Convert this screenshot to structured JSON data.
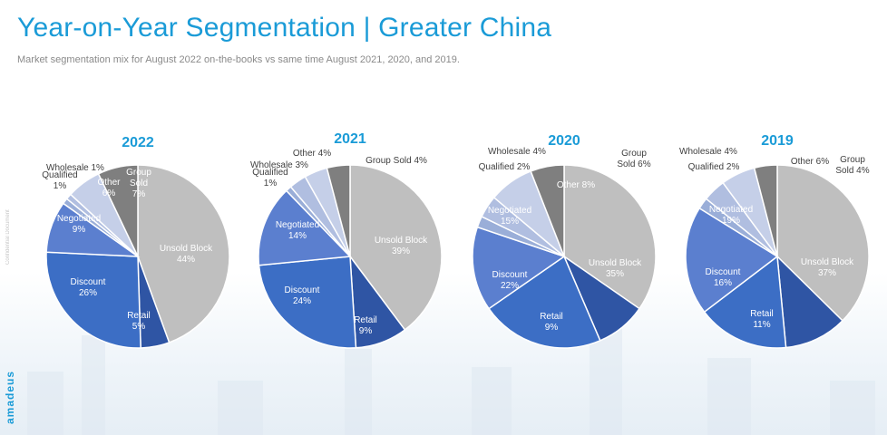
{
  "header": {
    "title": "Year-on-Year Segmentation | Greater China",
    "subtitle": "Market segmentation mix for August 2022 on-the-books vs same time August 2021, 2020, and 2019."
  },
  "side": {
    "confidential": "Confidential Document",
    "logo": "amadeus"
  },
  "colors": {
    "title": "#1a9bd7",
    "year_label": "#1a9bd7",
    "unsold_block": "#bfbfbf",
    "group_sold": "#7f7f7f",
    "other": "#c5cfe8",
    "wholesale": "#b0bee0",
    "qualified": "#9aaed8",
    "negotiated": "#5b7fcf",
    "discount": "#3c6ec5",
    "retail": "#2f55a4"
  },
  "chart_data": [
    {
      "type": "pie",
      "title": "2022",
      "slices": [
        {
          "key": "unsold_block",
          "label": "Unsold Block",
          "value": 44,
          "text": "44%"
        },
        {
          "key": "retail",
          "label": "Retail",
          "value": 5,
          "text": "5%"
        },
        {
          "key": "discount",
          "label": "Discount",
          "value": 26,
          "text": "26%"
        },
        {
          "key": "negotiated",
          "label": "Negotiated",
          "value": 9,
          "text": "9%"
        },
        {
          "key": "qualified",
          "label": "Qualified",
          "value": 1,
          "text": "1%"
        },
        {
          "key": "wholesale",
          "label": "Wholesale",
          "value": 1,
          "text": "1%"
        },
        {
          "key": "other",
          "label": "Other",
          "value": 6,
          "text": "6%"
        },
        {
          "key": "group_sold",
          "label": "Group Sold",
          "value": 7,
          "text": "7%"
        }
      ]
    },
    {
      "type": "pie",
      "title": "2021",
      "slices": [
        {
          "key": "unsold_block",
          "label": "Unsold Block",
          "value": 39,
          "text": "39%"
        },
        {
          "key": "retail",
          "label": "Retail",
          "value": 9,
          "text": "9%"
        },
        {
          "key": "discount",
          "label": "Discount",
          "value": 24,
          "text": "24%"
        },
        {
          "key": "negotiated",
          "label": "Negotiated",
          "value": 14,
          "text": "14%"
        },
        {
          "key": "qualified",
          "label": "Qualified",
          "value": 1,
          "text": "1%"
        },
        {
          "key": "wholesale",
          "label": "Wholesale",
          "value": 3,
          "text": "3%"
        },
        {
          "key": "other",
          "label": "Other",
          "value": 4,
          "text": "4%"
        },
        {
          "key": "group_sold",
          "label": "Group Sold",
          "value": 4,
          "text": "4%"
        }
      ]
    },
    {
      "type": "pie",
      "title": "2020",
      "slices": [
        {
          "key": "unsold_block",
          "label": "Unsold Block",
          "value": 35,
          "text": "35%"
        },
        {
          "key": "retail",
          "label": "Retail",
          "value": 9,
          "text": "9%"
        },
        {
          "key": "discount",
          "label": "Discount",
          "value": 22,
          "text": "22%"
        },
        {
          "key": "negotiated",
          "label": "Negotiated",
          "value": 15,
          "text": "15%"
        },
        {
          "key": "qualified",
          "label": "Qualified",
          "value": 2,
          "text": "2%"
        },
        {
          "key": "wholesale",
          "label": "Wholesale",
          "value": 4,
          "text": "4%"
        },
        {
          "key": "other",
          "label": "Other",
          "value": 8,
          "text": "8%"
        },
        {
          "key": "group_sold",
          "label": "Group Sold",
          "value": 6,
          "text": "6%"
        }
      ]
    },
    {
      "type": "pie",
      "title": "2019",
      "slices": [
        {
          "key": "unsold_block",
          "label": "Unsold Block",
          "value": 37,
          "text": "37%"
        },
        {
          "key": "retail",
          "label": "Retail",
          "value": 11,
          "text": "11%"
        },
        {
          "key": "discount",
          "label": "Discount",
          "value": 16,
          "text": "16%"
        },
        {
          "key": "negotiated",
          "label": "Negotiated",
          "value": 19,
          "text": "19%"
        },
        {
          "key": "qualified",
          "label": "Qualified",
          "value": 2,
          "text": "2%"
        },
        {
          "key": "wholesale",
          "label": "Wholesale",
          "value": 4,
          "text": "4%"
        },
        {
          "key": "other",
          "label": "Other",
          "value": 6,
          "text": "6%"
        },
        {
          "key": "group_sold",
          "label": "Group Sold",
          "value": 4,
          "text": "4%"
        }
      ]
    }
  ]
}
